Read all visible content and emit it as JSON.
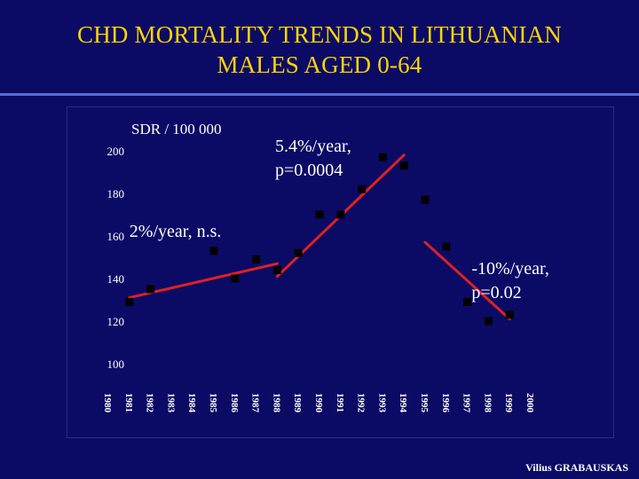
{
  "slide": {
    "title_line1": "CHD MORTALITY TRENDS IN LITHUANIAN",
    "title_line2": "MALES AGED 0-64",
    "footer": "Vilius GRABAUSKAS"
  },
  "colors": {
    "background": "#0b0b66",
    "title": "#ffd500",
    "text": "#ffffff",
    "marker": "#000000",
    "trend_line": "#e02020",
    "rule": "#5a6bd6"
  },
  "chart_data": {
    "type": "scatter",
    "title": "",
    "xlabel": "",
    "ylabel": "SDR / 100 000",
    "xlim": [
      1980,
      2000
    ],
    "ylim": [
      100,
      200
    ],
    "y_ticks": [
      100,
      120,
      140,
      160,
      180,
      200
    ],
    "x_ticks": [
      "1980",
      "1981",
      "1982",
      "1983",
      "1984",
      "1985",
      "1986",
      "1987",
      "1988",
      "1989",
      "1990",
      "1991",
      "1992",
      "1993",
      "1994",
      "1995",
      "1996",
      "1997",
      "1998",
      "1999",
      "2000"
    ],
    "grid": false,
    "series": [
      {
        "x": [
          1981,
          1982,
          1985,
          1986,
          1987,
          1988,
          1989,
          1990,
          1991,
          1992,
          1993,
          1994,
          1995,
          1996,
          1997,
          1998,
          1999
        ],
        "y": [
          129,
          135,
          153,
          140,
          149,
          144,
          152,
          170,
          170,
          182,
          197,
          193,
          177,
          155,
          129,
          120,
          123
        ]
      }
    ],
    "trend_lines": [
      {
        "x": [
          1981,
          1988
        ],
        "y": [
          131,
          147
        ]
      },
      {
        "x": [
          1988,
          1994
        ],
        "y": [
          141,
          198
        ]
      },
      {
        "x": [
          1995,
          1999
        ],
        "y": [
          157,
          121
        ]
      }
    ],
    "annotations": [
      {
        "text_line1": "5.4%/year,",
        "text_line2": "p=0.0004",
        "x": 1987.9,
        "y": 199.5
      },
      {
        "text_line1": "2%/year, n.s.",
        "text_line2": "",
        "x": 1981,
        "y": 159.5
      },
      {
        "text_line1": "-10%/year,",
        "text_line2": "p=0.02",
        "x": 1997.2,
        "y": 142
      }
    ]
  }
}
